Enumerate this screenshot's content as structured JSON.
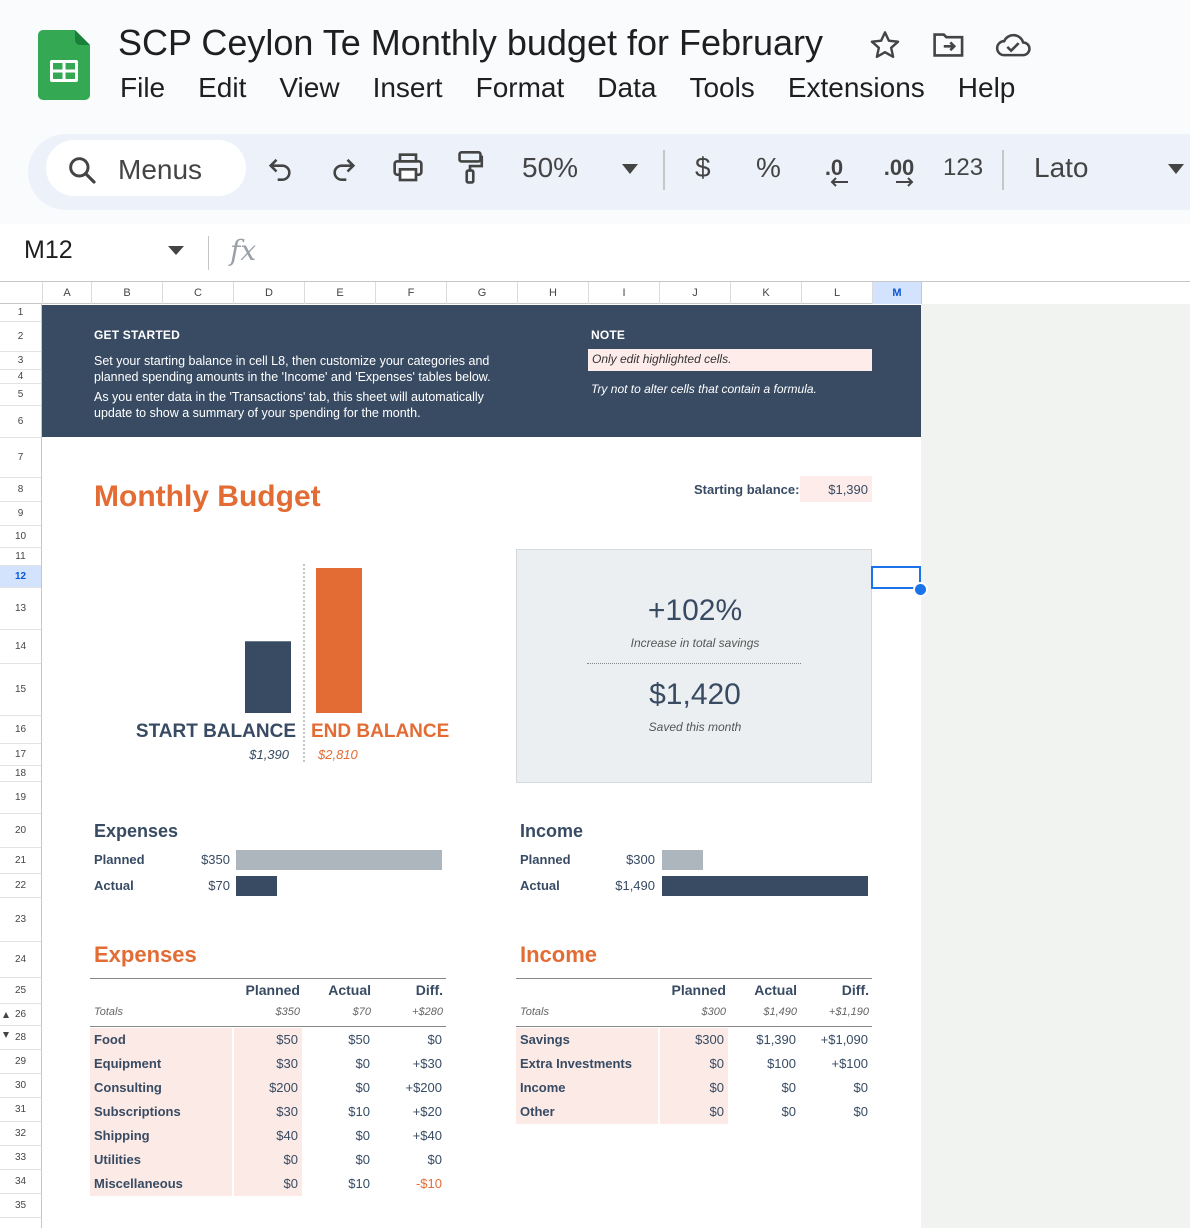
{
  "app": {
    "title": "SCP Ceylon Te Monthly budget for February",
    "menu": [
      "File",
      "Edit",
      "View",
      "Insert",
      "Format",
      "Data",
      "Tools",
      "Extensions",
      "Help"
    ]
  },
  "toolbar": {
    "search_label": "Menus",
    "zoom": "50%",
    "currency": "$",
    "percent": "%",
    "dec_less": ".0",
    "dec_more": ".00",
    "number_format": "123",
    "font": "Lato"
  },
  "formula_bar": {
    "cell_ref": "M12",
    "fx": "fx"
  },
  "columns": [
    "A",
    "B",
    "C",
    "D",
    "E",
    "F",
    "G",
    "H",
    "I",
    "J",
    "K",
    "L",
    "M"
  ],
  "rows": [
    "1",
    "2",
    "3",
    "4",
    "5",
    "6",
    "7",
    "8",
    "9",
    "10",
    "11",
    "12",
    "13",
    "14",
    "15",
    "16",
    "17",
    "18",
    "19",
    "20",
    "21",
    "22",
    "23",
    "24",
    "25",
    "26",
    "28",
    "29",
    "30",
    "31",
    "32",
    "33",
    "34",
    "35"
  ],
  "banner": {
    "get_started": "GET STARTED",
    "p1": "Set your starting balance in cell L8, then customize your categories and planned spending amounts in the 'Income' and 'Expenses' tables below.",
    "p2": "As you enter data in the 'Transactions' tab, this sheet will automatically update to show a summary of your spending for the month.",
    "note_title": "NOTE",
    "note_box": "Only edit highlighted cells.",
    "note_sub": "Try not to alter cells that contain a formula."
  },
  "budget": {
    "title": "Monthly Budget",
    "starting_label": "Starting balance:",
    "starting_value": "$1,390"
  },
  "balance_chart": {
    "start_label": "START BALANCE",
    "start_value_text": "$1,390",
    "end_label": "END BALANCE",
    "end_value_text": "$2,810",
    "start_value": 1390,
    "end_value": 2810,
    "start_color": "#384b63",
    "end_color": "#e36c35"
  },
  "summary": {
    "pct": "+102%",
    "pct_caption": "Increase in total savings",
    "saved": "$1,420",
    "saved_caption": "Saved this month"
  },
  "expenses_mini": {
    "title": "Expenses",
    "planned_label": "Planned",
    "planned_text": "$350",
    "planned": 350,
    "actual_label": "Actual",
    "actual_text": "$70",
    "actual": 70
  },
  "income_mini": {
    "title": "Income",
    "planned_label": "Planned",
    "planned_text": "$300",
    "planned": 300,
    "actual_label": "Actual",
    "actual_text": "$1,490",
    "actual": 1490
  },
  "expenses_table": {
    "title": "Expenses",
    "headers": [
      "Planned",
      "Actual",
      "Diff."
    ],
    "totals_label": "Totals",
    "totals": [
      "$350",
      "$70",
      "+$280"
    ],
    "rows": [
      [
        "Food",
        "$50",
        "$50",
        "$0"
      ],
      [
        "Equipment",
        "$30",
        "$0",
        "+$30"
      ],
      [
        "Consulting",
        "$200",
        "$0",
        "+$200"
      ],
      [
        "Subscriptions",
        "$30",
        "$10",
        "+$20"
      ],
      [
        "Shipping",
        "$40",
        "$0",
        "+$40"
      ],
      [
        "Utilities",
        "$0",
        "$0",
        "$0"
      ],
      [
        "Miscellaneous",
        "$0",
        "$10",
        "-$10"
      ]
    ]
  },
  "income_table": {
    "title": "Income",
    "headers": [
      "Planned",
      "Actual",
      "Diff."
    ],
    "totals_label": "Totals",
    "totals": [
      "$300",
      "$1,490",
      "+$1,190"
    ],
    "rows": [
      [
        "Savings",
        "$300",
        "$1,390",
        "+$1,090"
      ],
      [
        "Extra Investments",
        "$0",
        "$100",
        "+$100"
      ],
      [
        "Income",
        "$0",
        "$0",
        "$0"
      ],
      [
        "Other",
        "$0",
        "$0",
        "$0"
      ]
    ]
  },
  "colors": {
    "navy": "#384b63",
    "orange": "#e36c35",
    "highlight": "#fbeae5",
    "planned_bar": "#adb5bd",
    "negative": "#e36c35"
  }
}
